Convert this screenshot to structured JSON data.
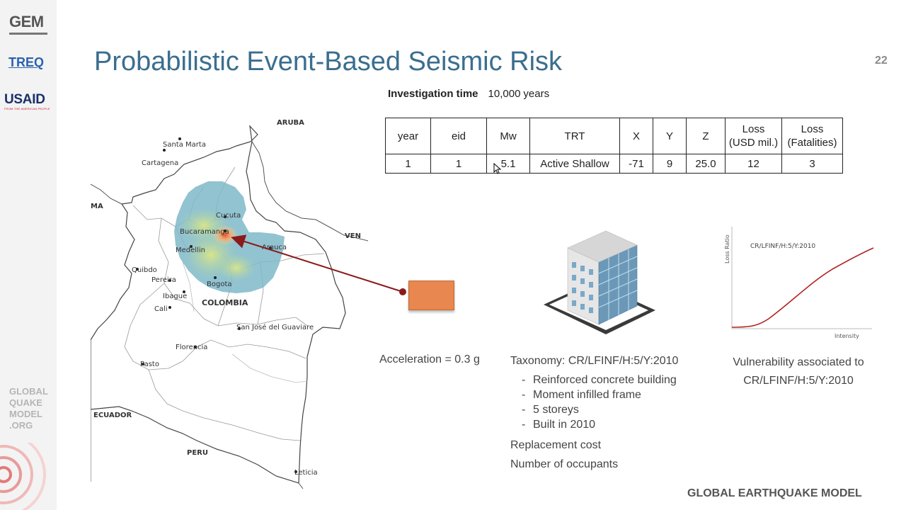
{
  "sidebar": {
    "logos": [
      "GEM",
      "TREQ",
      "USAID"
    ],
    "usaid_tagline": "FROM THE AMERICAN PEOPLE",
    "bottom_logo": [
      "GLOBAL",
      "QUAKE",
      "MODEL",
      ".ORG"
    ]
  },
  "slide": {
    "title": "Probabilistic Event-Based Seismic Risk",
    "page_number": "22",
    "footer": "GLOBAL EARTHQUAKE MODEL"
  },
  "investigation": {
    "label": "Investigation time",
    "value": "10,000",
    "unit": "years"
  },
  "event_table": {
    "headers": [
      [
        "year"
      ],
      [
        "eid"
      ],
      [
        "Mw"
      ],
      [
        "TRT"
      ],
      [
        "X"
      ],
      [
        "Y"
      ],
      [
        "Z"
      ],
      [
        "Loss",
        "(USD mil.)"
      ],
      [
        "Loss",
        "(Fatalities)"
      ]
    ],
    "rows": [
      [
        "1",
        "1",
        "5.1",
        "Active Shallow",
        "-71",
        "9",
        "25.0",
        "12",
        "3"
      ]
    ]
  },
  "map": {
    "labels": {
      "aruba": "ARUBA",
      "santa_marta": "Santa Marta",
      "cartagena": "Cartagena",
      "cucuta": "Cucuta",
      "bucaramanga": "Bucaramanga",
      "arauca": "Arauca",
      "medellin": "Medellin",
      "quibdo": "Quibdo",
      "pereira": "Pereira",
      "ibague": "Ibague",
      "bogota": "Bogota",
      "cali": "Cali",
      "colombia": "COLOMBIA",
      "san_jose": "San José del Guaviare",
      "florencia": "Florencia",
      "pasto": "Pasto",
      "ecuador": "ECUADOR",
      "peru": "PERU",
      "leticia": "Leticia",
      "ven": "VEN",
      "ma": "MA"
    }
  },
  "acceleration": "Acceleration = 0.3 g",
  "taxonomy": {
    "heading": "Taxonomy: CR/LFINF/H:5/Y:2010",
    "bullets": [
      "Reinforced concrete building",
      "Moment infilled frame",
      "5 storeys",
      "Built in 2010"
    ],
    "extras": [
      "Replacement cost",
      "Number of occupants"
    ]
  },
  "vulnerability": {
    "curve_label": "CR/LFINF/H:5/Y:2010",
    "y_axis": "Loss Ratio",
    "x_axis": "Intensity",
    "caption": [
      "Vulnerability associated to",
      "CR/LFINF/H:5/Y:2010"
    ]
  },
  "colors": {
    "title": "#3b6e8f",
    "arrow": "#8b1a1a",
    "footprint": "#7fb8c9",
    "acceleration_box": "#e8874f"
  }
}
